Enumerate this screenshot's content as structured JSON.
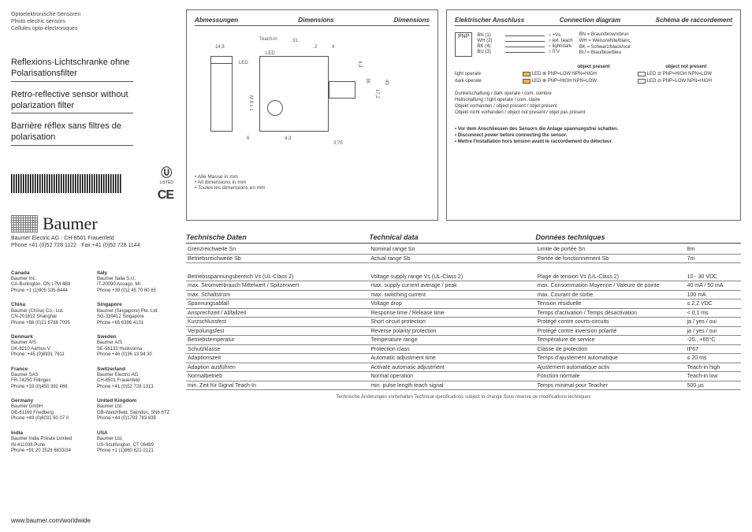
{
  "header": {
    "de": "Optoelektronische Sensoren",
    "en": "Photo electric sensors",
    "fr": "Cellules opto-électroniques"
  },
  "titles": {
    "de": "Reflexions-Lichtschranke ohne Polarisationsfilter",
    "en": "Retro-reflective sensor without polarization filter",
    "fr": "Barrière réflex sans filtres de polarisation"
  },
  "logo_text": "Baumer",
  "company_addr": "Baumer Electric AG · CH-8501 Frauenfeld",
  "company_phone": "Phone +41 (0)52 728 1122 · Fax +41 (0)52 728 1144",
  "site": "www.baumer.com/worldwide",
  "marks": {
    "ul": "c UL us",
    "ul_sub": "LISTED",
    "ce": "CE"
  },
  "contacts": [
    {
      "country": "Canada",
      "lines": [
        "Baumer Inc.",
        "CA-Burlington, ON L7M 4B9",
        "Phone +1 (1)905 335-8444"
      ]
    },
    {
      "country": "Italy",
      "lines": [
        "Baumer Italia S.r.l.",
        "IT-20090 Assago, MI",
        "Phone +39 (0)2 45 70 60 65"
      ]
    },
    {
      "country": "China",
      "lines": [
        "Baumer (China) Co., Ltd.",
        "CN-201612 Shanghai",
        "Phone +86 (0)21 6768 7095"
      ]
    },
    {
      "country": "Singapore",
      "lines": [
        "Baumer (Singapore) Pte. Ltd.",
        "SG-339412 Singapore",
        "Phone +65 6396 4131"
      ]
    },
    {
      "country": "Denmark",
      "lines": [
        "Baumer A/S",
        "DK-8210 Aarhus V",
        "Phone: +45 (0)8931 7611"
      ]
    },
    {
      "country": "Sweden",
      "lines": [
        "Baumer A/S",
        "SE-56133 Huskvarna",
        "Phone +46 (0)36 13 94 30"
      ]
    },
    {
      "country": "France",
      "lines": [
        "Baumer SAS",
        "FR-74250 Fillinges",
        "Phone +33 (0)450 392 466"
      ]
    },
    {
      "country": "Switzerland",
      "lines": [
        "Baumer Electric AG",
        "CH-8501 Frauenfeld",
        "Phone +41 (0)52 728 1313"
      ]
    },
    {
      "country": "Germany",
      "lines": [
        "Baumer GmbH",
        "DE-61169 Friedberg",
        "Phone +49 (0)6031 60 07 0"
      ]
    },
    {
      "country": "United Kingdom",
      "lines": [
        "Baumer Ltd.",
        "GB-Watchfield, Swindon, SN6 8TZ",
        "Phone +44 (0)1793 783 839"
      ]
    },
    {
      "country": "India",
      "lines": [
        "Baumer India Private Limited",
        "IN-411038 Pune",
        "Phone +91 20 2528 6833/34"
      ]
    },
    {
      "country": "USA",
      "lines": [
        "Baumer Ltd.",
        "US-Southington, CT 06489",
        "Phone +1 (1)860 621-2121"
      ]
    }
  ],
  "dim_panel": {
    "head1": "Abmessungen",
    "head2": "Dimensions",
    "head3": "Dimensions",
    "labels": {
      "teachin": "Teach-in",
      "led": "LED",
      "d148": "14,8",
      "d31": "31",
      "d2": "2",
      "d4": "4",
      "d43_r": "4,3",
      "d35": "35",
      "d172": "17,2",
      "d43": "43",
      "m8": "M 8 x 1",
      "d6": "6",
      "d43b": "4,3",
      "d375": "3,75"
    },
    "notes": [
      "Alle Masse in mm",
      "All dimensions in mm",
      "Toutes les dimensions en mm"
    ]
  },
  "conn_panel": {
    "head1": "Elektrischer Anschluss",
    "head2": "Connection diagram",
    "head3": "Schéma de raccordement",
    "pnp": "PNP",
    "wires": [
      {
        "lbl": "BN (1)",
        "sig": "+Vs"
      },
      {
        "lbl": "WH (2)",
        "sig": "ext. teach"
      },
      {
        "lbl": "BK (4)",
        "sig": "light/dark"
      },
      {
        "lbl": "BU (3)",
        "sig": "0 V"
      }
    ],
    "legend": [
      "BN = Braun/brown/brun",
      "WH = Weiss/white/blanc",
      "BK = Schwarz/black/noir",
      "BU = Blau/blue/bleu"
    ],
    "sig_heads": {
      "present": "object present",
      "absent": "object not present"
    },
    "sig_rows": [
      {
        "label": "light operate",
        "p": "LED ⊗ PNP=LOW  NPN=HIGH",
        "a": "LED ⊘ PNP=HIGH NPN=LOW"
      },
      {
        "label": "dark operate",
        "p": "LED ⊗ PNP=HIGH NPN=LOW",
        "a": "LED ⊘ PNP=LOW  NPN=HIGH"
      }
    ],
    "mode_notes": [
      "Dunkelschaltung / dark operate / com. sombre",
      "Hellschaltung / light operate / com. claire",
      "Objekt vorhanden / object present / objet présent",
      "Objekt nicht vorhanden / object not present / objet pas présent"
    ],
    "warnings": [
      "Vor dem Anschliessen des Sensors die Anlage spannungsfrei schalten.",
      "Disconnect power before connecting the sensor.",
      "Mettre l'installation hors tension avant le raccordement du détecteur."
    ]
  },
  "tech": {
    "head": {
      "c1": "Technische Daten",
      "c2": "Technical data",
      "c3": "Données techniques"
    },
    "rows": [
      {
        "c1": "Grenzreichweite Sn",
        "c2": "Nominal range Sn",
        "c3": "Limite de portée Sn",
        "c4": "8m"
      },
      {
        "c1": "Betriebsreichweite Sb",
        "c2": "Actual range Sb",
        "c3": "Portée de fonctionnement Sb",
        "c4": "7m"
      },
      {
        "spacer": true
      },
      {
        "c1": "Betriebsspannungsbereich Vs (UL-Class 2)",
        "c2": "Voltage supply range Vs (UL-Class 2)",
        "c3": "Plage de tension Vs (UL-Class 2)",
        "c4": "10 - 30 VDC"
      },
      {
        "c1": "max. Stromverbrauch Mittelwert / Spitzenwert",
        "c2": "max. supply current average / peak",
        "c3": "max. Consommation Moyenne / Valeure de pointe",
        "c4": "40 mA / 50 mA"
      },
      {
        "c1": "max. Schaltstrom",
        "c2": "max. switching current",
        "c3": "max. Courant de sortie",
        "c4": "100 mA"
      },
      {
        "c1": "Spannungsabfall",
        "c2": "Voltage drop",
        "c3": "Tension résiduelle",
        "c4": "≤ 2,2 VDC"
      },
      {
        "c1": "Ansprechzeit / Abfallzeit",
        "c2": "Response time / Release time",
        "c3": "Temps d'activation / Temps désactivation",
        "c4": "< 0,1 ms"
      },
      {
        "c1": "Kurzschlussfest",
        "c2": "Short circuit protection",
        "c3": "Protégé contre courts-circuits",
        "c4": "ja / yes / oui"
      },
      {
        "c1": "Verpolungsfest",
        "c2": "Reverse polarity protection",
        "c3": "Protégé contre inversion polarité",
        "c4": "ja / yes / oui"
      },
      {
        "c1": "Betriebstemperatur",
        "c2": "Temperature range",
        "c3": "Température de service",
        "c4": "-25...+65°C"
      },
      {
        "c1": "Schutzklasse",
        "c2": "Protection class",
        "c3": "Classe de protection",
        "c4": "IP67"
      },
      {
        "c1": "Adaptionszeit",
        "c2": "Automatic adjustment time",
        "c3": "Temps d'ajustement automatique",
        "c4": "≤ 20 ms"
      },
      {
        "c1": "Adaption ausführen",
        "c2": "Activate automatic adjustment",
        "c3": "Ajustement automatique activ",
        "c4": "Teach-in high"
      },
      {
        "c1": "Normalbetrieb",
        "c2": "Normal operation",
        "c3": "Fonction normale",
        "c4": "Teach-in low"
      },
      {
        "c1": "min. Zeit für Signal Teach-In",
        "c2": "min. pulse length teach signal",
        "c3": "Temps minimal pour Teacher",
        "c4": "500 µs"
      }
    ],
    "foot": "Technische Änderungen vorbehalten   Technical specifications subject to change   Sous réserve de modifications techniques"
  }
}
